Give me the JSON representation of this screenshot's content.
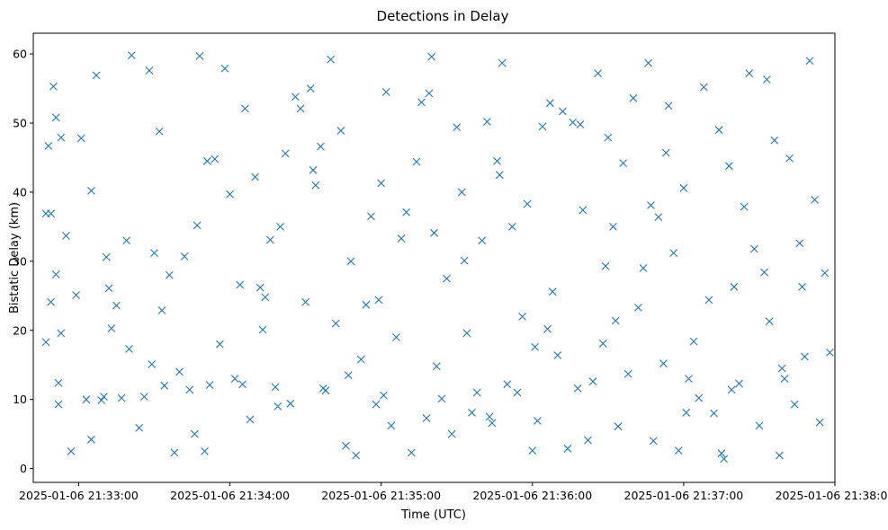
{
  "chart_data": {
    "type": "scatter",
    "title": "Detections in Delay",
    "xlabel": "Time (UTC)",
    "ylabel": "Bistatic Delay (km)",
    "marker": "x",
    "color": "#1f77b4",
    "x_ticks": [
      "2025-01-06 21:33:00",
      "2025-01-06 21:34:00",
      "2025-01-06 21:35:00",
      "2025-01-06 21:36:00",
      "2025-01-06 21:37:00",
      "2025-01-06 21:38:00"
    ],
    "y_ticks": [
      "0",
      "10",
      "20",
      "30",
      "40",
      "50",
      "60"
    ],
    "xlim": [
      "2025-01-06 21:32:42",
      "2025-01-06 21:38:00"
    ],
    "ylim": [
      -2,
      63
    ],
    "x": [
      "21:32:47",
      "21:32:48",
      "21:32:49",
      "21:32:50",
      "21:32:51",
      "21:32:52",
      "21:32:53",
      "21:32:47",
      "21:32:49",
      "21:32:52",
      "21:32:53",
      "21:32:51",
      "21:32:55",
      "21:32:57",
      "21:32:59",
      "21:33:01",
      "21:33:03",
      "21:33:05",
      "21:33:07",
      "21:33:09",
      "21:33:11",
      "21:33:13",
      "21:33:15",
      "21:33:17",
      "21:33:19",
      "21:33:21",
      "21:33:24",
      "21:33:26",
      "21:33:28",
      "21:33:30",
      "21:33:32",
      "21:33:34",
      "21:33:36",
      "21:33:38",
      "21:33:40",
      "21:33:42",
      "21:33:44",
      "21:33:46",
      "21:33:48",
      "21:33:50",
      "21:33:52",
      "21:33:54",
      "21:33:56",
      "21:33:58",
      "21:34:00",
      "21:34:02",
      "21:34:04",
      "21:34:06",
      "21:34:08",
      "21:34:10",
      "21:34:12",
      "21:34:14",
      "21:34:16",
      "21:34:18",
      "21:34:20",
      "21:34:22",
      "21:34:24",
      "21:34:26",
      "21:34:28",
      "21:34:30",
      "21:34:32",
      "21:34:34",
      "21:34:36",
      "21:34:38",
      "21:34:40",
      "21:34:42",
      "21:34:44",
      "21:34:46",
      "21:34:48",
      "21:34:50",
      "21:34:52",
      "21:34:54",
      "21:34:56",
      "21:34:58",
      "21:35:00",
      "21:35:02",
      "21:35:04",
      "21:35:06",
      "21:35:08",
      "21:35:10",
      "21:35:12",
      "21:35:14",
      "21:35:16",
      "21:35:18",
      "21:35:20",
      "21:35:22",
      "21:35:24",
      "21:35:26",
      "21:35:28",
      "21:35:30",
      "21:35:32",
      "21:35:34",
      "21:35:36",
      "21:35:38",
      "21:35:40",
      "21:35:42",
      "21:35:44",
      "21:35:46",
      "21:35:48",
      "21:35:50",
      "21:35:52",
      "21:35:54",
      "21:35:56",
      "21:35:58",
      "21:36:00",
      "21:36:02",
      "21:36:04",
      "21:36:06",
      "21:36:08",
      "21:36:10",
      "21:36:12",
      "21:36:14",
      "21:36:16",
      "21:36:18",
      "21:36:20",
      "21:36:22",
      "21:36:24",
      "21:36:26",
      "21:36:28",
      "21:36:30",
      "21:36:32",
      "21:36:34",
      "21:36:36",
      "21:36:38",
      "21:36:40",
      "21:36:42",
      "21:36:44",
      "21:36:46",
      "21:36:48",
      "21:36:50",
      "21:36:52",
      "21:36:54",
      "21:36:56",
      "21:36:58",
      "21:37:00",
      "21:37:02",
      "21:37:04",
      "21:37:06",
      "21:37:08",
      "21:37:10",
      "21:37:12",
      "21:37:14",
      "21:37:16",
      "21:37:18",
      "21:37:20",
      "21:37:22",
      "21:37:24",
      "21:37:26",
      "21:37:28",
      "21:37:30",
      "21:37:32",
      "21:37:34",
      "21:37:36",
      "21:37:38",
      "21:37:40",
      "21:37:42",
      "21:37:44",
      "21:37:46",
      "21:37:48",
      "21:37:50",
      "21:37:52",
      "21:37:54",
      "21:37:56",
      "21:37:58",
      "21:33:05",
      "21:33:12",
      "21:33:20",
      "21:33:33",
      "21:33:47",
      "21:34:05",
      "21:34:19",
      "21:34:33",
      "21:34:47",
      "21:35:01",
      "21:35:19",
      "21:35:33",
      "21:35:47",
      "21:36:01",
      "21:36:19",
      "21:36:33",
      "21:36:47",
      "21:37:01",
      "21:37:19",
      "21:37:33",
      "21:37:47",
      "21:33:10",
      "21:33:29",
      "21:33:51",
      "21:34:13",
      "21:34:37",
      "21:34:59",
      "21:35:21",
      "21:35:43",
      "21:36:07",
      "21:36:29",
      "21:36:53",
      "21:37:15",
      "21:37:39"
    ],
    "y": [
      18.3,
      46.7,
      36.9,
      55.3,
      28.1,
      12.4,
      47.9,
      36.9,
      24.1,
      9.3,
      19.6,
      50.8,
      33.7,
      2.5,
      25.1,
      47.8,
      10.0,
      40.2,
      56.9,
      9.9,
      30.6,
      20.3,
      23.6,
      10.2,
      33.0,
      59.8,
      5.9,
      10.4,
      57.6,
      31.2,
      48.8,
      12.0,
      28.0,
      2.3,
      14.0,
      30.7,
      11.4,
      5.0,
      59.7,
      2.5,
      12.1,
      44.8,
      18.0,
      57.9,
      39.7,
      13.0,
      26.6,
      52.1,
      7.1,
      42.2,
      26.2,
      24.8,
      33.1,
      11.8,
      35.0,
      45.6,
      9.4,
      53.8,
      52.1,
      24.1,
      55.0,
      41.0,
      46.6,
      11.3,
      59.2,
      21.0,
      48.9,
      3.3,
      30.0,
      1.9,
      15.8,
      23.7,
      36.5,
      9.3,
      41.3,
      54.5,
      6.2,
      19.0,
      33.3,
      37.1,
      2.3,
      44.4,
      53.0,
      7.3,
      59.6,
      14.8,
      10.1,
      27.5,
      5.0,
      49.4,
      40.0,
      19.6,
      8.1,
      11.0,
      33.0,
      50.2,
      6.6,
      44.5,
      58.7,
      12.2,
      35.0,
      11.0,
      22.0,
      38.3,
      2.6,
      6.9,
      49.5,
      20.2,
      25.6,
      16.4,
      51.7,
      2.9,
      50.1,
      11.6,
      37.4,
      4.1,
      12.6,
      57.2,
      18.1,
      47.9,
      35.0,
      6.1,
      44.2,
      13.7,
      53.6,
      23.3,
      29.0,
      58.7,
      4.0,
      36.4,
      15.2,
      52.5,
      31.2,
      2.6,
      40.6,
      13.0,
      18.4,
      10.2,
      55.2,
      24.4,
      8.0,
      49.0,
      1.4,
      43.8,
      26.3,
      12.3,
      37.9,
      57.2,
      31.8,
      6.2,
      28.4,
      21.3,
      47.5,
      1.9,
      13.0,
      44.9,
      9.3,
      32.6,
      16.2,
      59.0,
      38.9,
      6.7,
      28.3,
      16.8,
      4.2,
      26.1,
      17.3,
      22.9,
      35.2,
      12.2,
      9.0,
      43.2,
      13.5,
      10.6,
      54.3,
      30.1,
      42.5,
      17.6,
      49.8,
      21.4,
      38.1,
      8.1,
      11.4,
      56.3,
      26.3,
      10.4,
      15.1,
      44.5,
      20.1,
      11.6,
      24.4,
      34.1,
      7.5,
      52.9,
      29.3,
      45.7,
      2.2,
      14.5
    ]
  }
}
